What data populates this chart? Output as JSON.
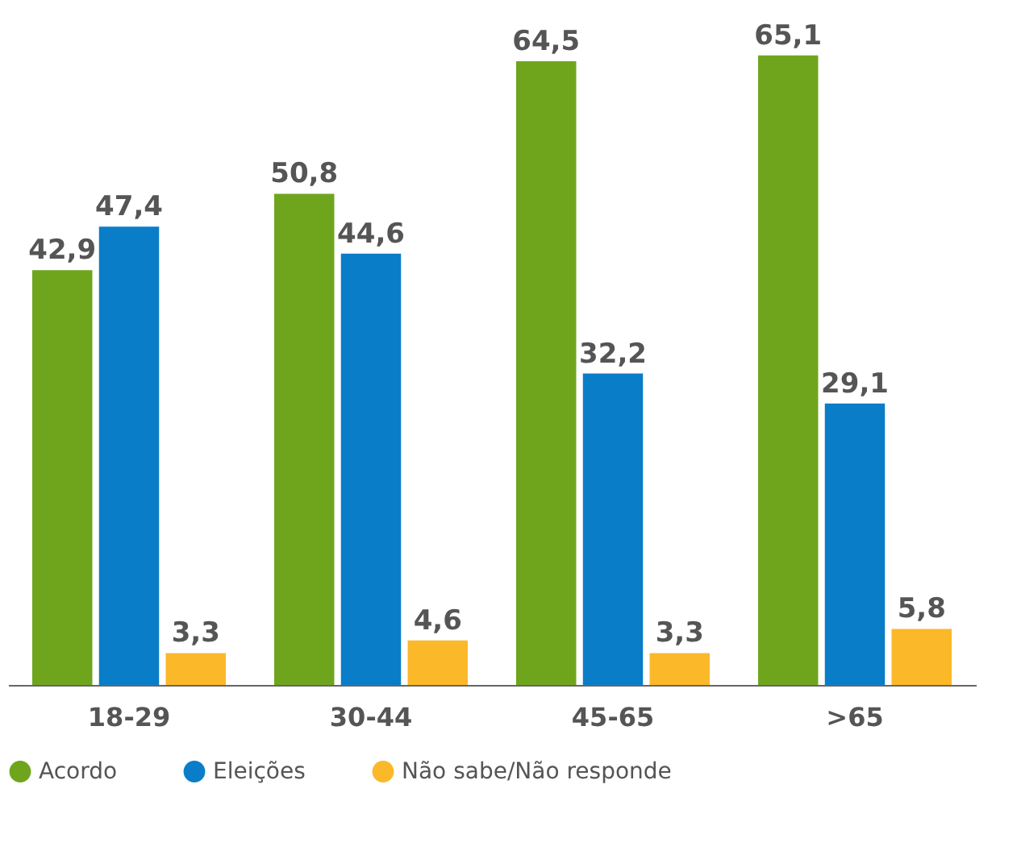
{
  "chart_data": {
    "type": "bar",
    "categories": [
      "18-29",
      "30-44",
      "45-65",
      ">65"
    ],
    "series": [
      {
        "name": "Acordo",
        "color": "#6fa51d",
        "values": [
          42.9,
          50.8,
          64.5,
          65.1
        ],
        "value_labels": [
          "42,9",
          "50,8",
          "64,5",
          "65,1"
        ]
      },
      {
        "name": "Eleições",
        "color": "#0a7dc8",
        "values": [
          47.4,
          44.6,
          32.2,
          29.1
        ],
        "value_labels": [
          "47,4",
          "44,6",
          "32,2",
          "29,1"
        ]
      },
      {
        "name": "Não sabe/Não responde",
        "color": "#fbb829",
        "values": [
          3.3,
          4.6,
          3.3,
          5.8
        ],
        "value_labels": [
          "3,3",
          "4,6",
          "3,3",
          "5,8"
        ]
      }
    ],
    "legend": "bottom",
    "grid": false
  }
}
